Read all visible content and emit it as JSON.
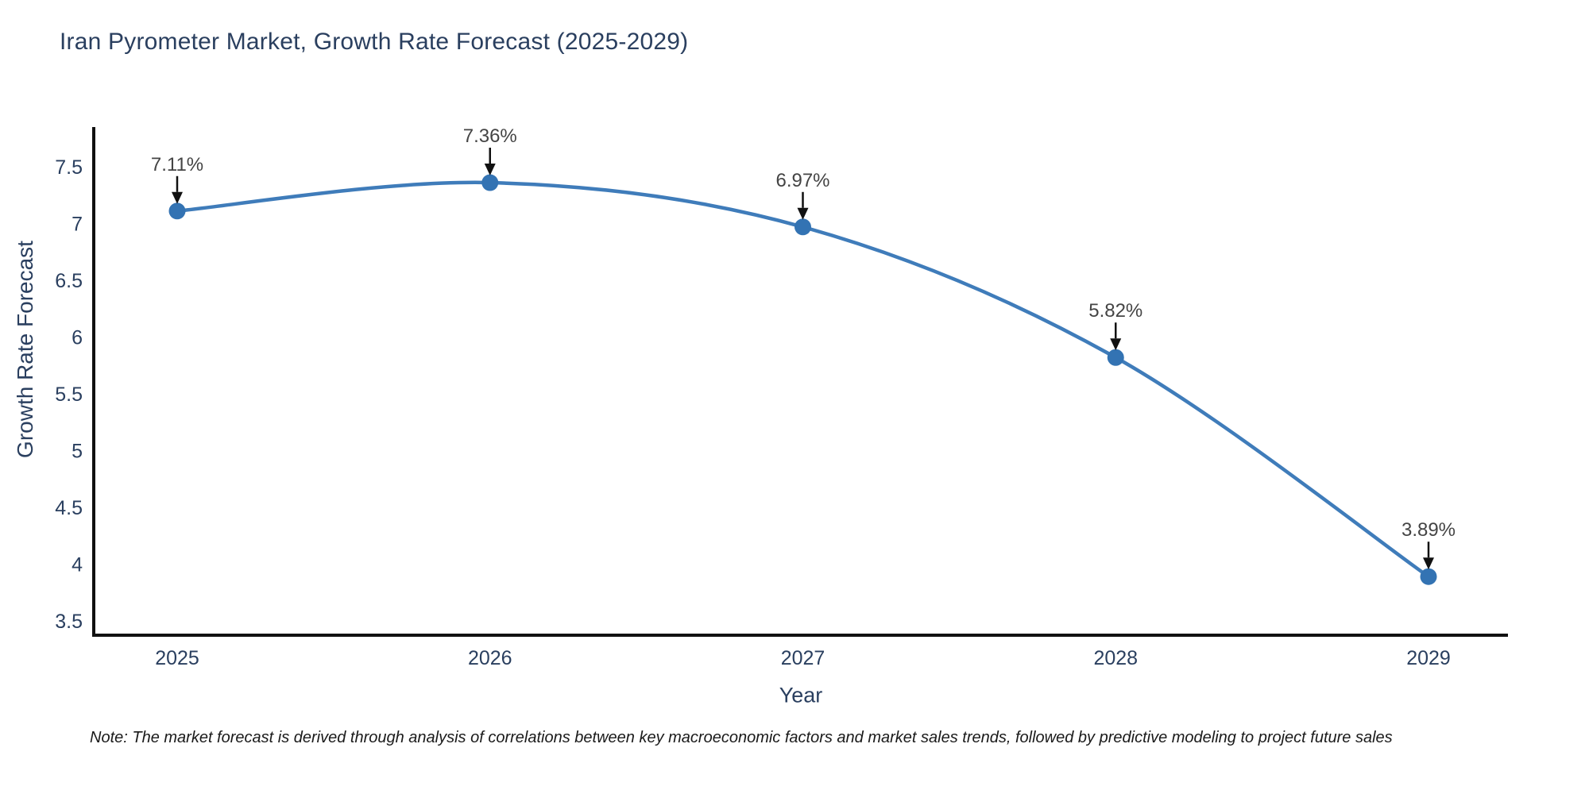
{
  "title": "Iran Pyrometer Market, Growth Rate Forecast (2025-2029)",
  "note": "Note: The market forecast is derived through analysis of correlations between key macroeconomic factors and market sales trends, followed by predictive modeling to project future sales",
  "chart_data": {
    "type": "line",
    "title": "Iran Pyrometer Market, Growth Rate Forecast (2025-2029)",
    "xlabel": "Year",
    "ylabel": "Growth Rate Forecast",
    "categories": [
      "2025",
      "2026",
      "2027",
      "2028",
      "2029"
    ],
    "series": [
      {
        "name": "Growth Rate Forecast",
        "values": [
          7.11,
          7.36,
          6.97,
          5.82,
          3.89
        ],
        "point_labels": [
          "7.11%",
          "7.36%",
          "6.97%",
          "5.82%",
          "3.89%"
        ]
      }
    ],
    "y_ticks": [
      "7.5",
      "7",
      "6.5",
      "6",
      "5.5",
      "5",
      "4.5",
      "4",
      "3.5"
    ],
    "ylim": [
      3.35,
      7.85
    ],
    "line_shape": "spline",
    "grid": false,
    "legend_position": "none",
    "annotation_style": "value label with black arrow pointing down to marker",
    "colors": {
      "line": "#3f7cba",
      "marker": "#3373b3",
      "axis": "#111111",
      "tick_text": "#2a3f5f",
      "annotation_text": "#444444",
      "arrow": "#111111",
      "title_text": "#2a3f5f",
      "background": "#ffffff"
    }
  }
}
